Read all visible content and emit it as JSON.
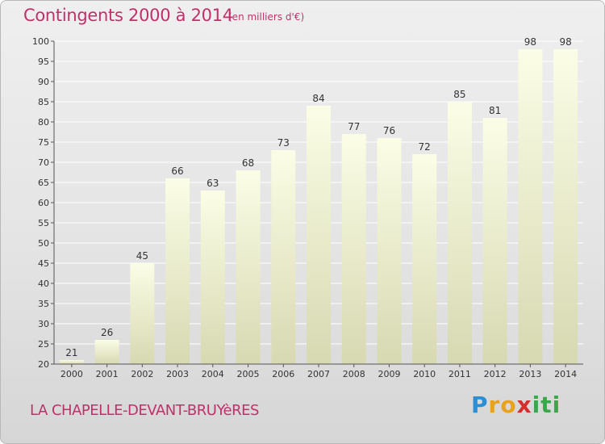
{
  "chart_data": {
    "type": "bar",
    "title": "Contingents 2000 à 2014",
    "subtitle": "(en milliers d'€)",
    "categories": [
      "2000",
      "2001",
      "2002",
      "2003",
      "2004",
      "2005",
      "2006",
      "2007",
      "2008",
      "2009",
      "2010",
      "2011",
      "2012",
      "2013",
      "2014"
    ],
    "values": [
      21,
      26,
      45,
      66,
      63,
      68,
      73,
      84,
      77,
      76,
      72,
      85,
      81,
      98,
      98
    ],
    "ylim": [
      20,
      100
    ],
    "yticks": [
      20,
      25,
      30,
      35,
      40,
      45,
      50,
      55,
      60,
      65,
      70,
      75,
      80,
      85,
      90,
      95,
      100
    ],
    "grid": true,
    "bar_color_top": "#fbfde6",
    "bar_color_bottom": "#d7d9b2"
  },
  "footer": {
    "commune": "LA CHAPELLE-DEVANT-BRUYèRES",
    "brand": [
      "P",
      "r",
      "o",
      "x",
      "i",
      "t",
      "i"
    ],
    "brand_colors": [
      "#2a8fd6",
      "#e8a21c",
      "#e8a21c",
      "#d62d2d",
      "#3aa84a",
      "#3aa84a",
      "#3aa84a"
    ]
  }
}
